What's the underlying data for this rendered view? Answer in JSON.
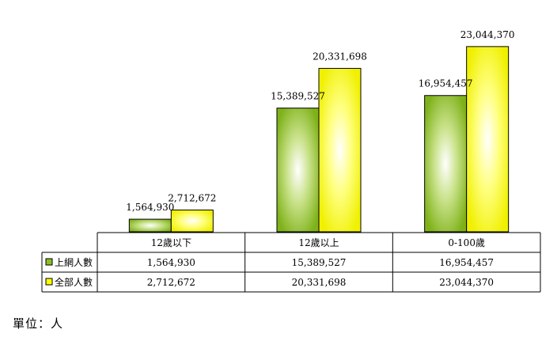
{
  "chart_data": {
    "type": "bar",
    "categories": [
      "12歲以下",
      "12歲以上",
      "0-100歲"
    ],
    "series": [
      {
        "name": "上網人數",
        "values": [
          1564930,
          15389527,
          16954457
        ],
        "labels": [
          "1,564,930",
          "15,389,527",
          "16,954,457"
        ],
        "color": "#8cbf26"
      },
      {
        "name": "全部人數",
        "values": [
          2712672,
          20331698,
          23044370
        ],
        "labels": [
          "2,712,672",
          "20,331,698",
          "23,044,370"
        ],
        "color": "#ffff00"
      }
    ],
    "ylim": [
      0,
      25000000
    ],
    "grid": false,
    "legend": "in data table"
  },
  "unit_note": "單位：人"
}
